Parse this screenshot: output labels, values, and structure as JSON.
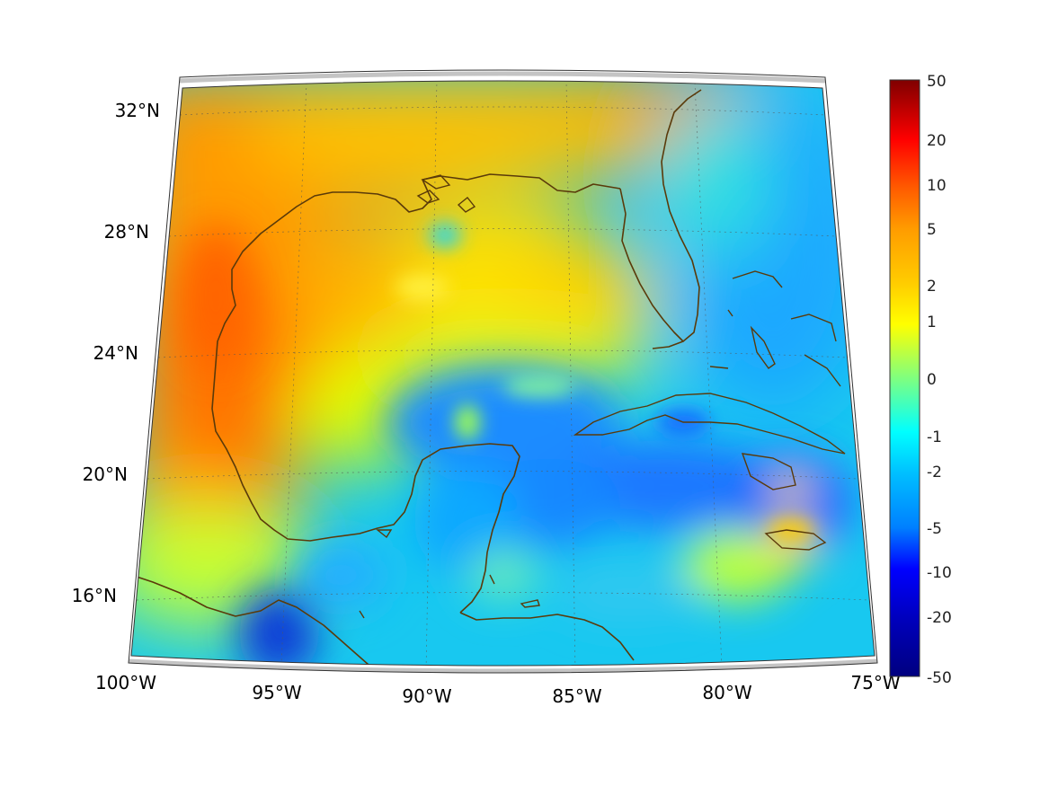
{
  "map": {
    "lat_ticks": [
      {
        "label": "32°N",
        "lat": 32
      },
      {
        "label": "28°N",
        "lat": 28
      },
      {
        "label": "24°N",
        "lat": 24
      },
      {
        "label": "20°N",
        "lat": 20
      },
      {
        "label": "16°N",
        "lat": 16
      }
    ],
    "lon_ticks": [
      {
        "label": "100°W",
        "lon": -100
      },
      {
        "label": "95°W",
        "lon": -95
      },
      {
        "label": "90°W",
        "lon": -90
      },
      {
        "label": "85°W",
        "lon": -85
      },
      {
        "label": "80°W",
        "lon": -80
      },
      {
        "label": "75°W",
        "lon": -75
      }
    ],
    "extent": {
      "lon_min": -100,
      "lon_max": -75,
      "lat_min": 14,
      "lat_max": 33
    },
    "coastline_color": "#5a3a0a",
    "projection": "lambert-conformal"
  },
  "colorbar": {
    "ticks": [
      "50",
      "20",
      "10",
      "5",
      "2",
      "1",
      "0",
      "-1",
      "-2",
      "-5",
      "-10",
      "-20",
      "-50"
    ],
    "colors": [
      "#7f0000",
      "#ff0000",
      "#ff5a00",
      "#ff9c00",
      "#ffcc00",
      "#ffff00",
      "#7fff7f",
      "#00ffff",
      "#00bfff",
      "#0080ff",
      "#0000ff",
      "#0000bf",
      "#00007f"
    ]
  }
}
